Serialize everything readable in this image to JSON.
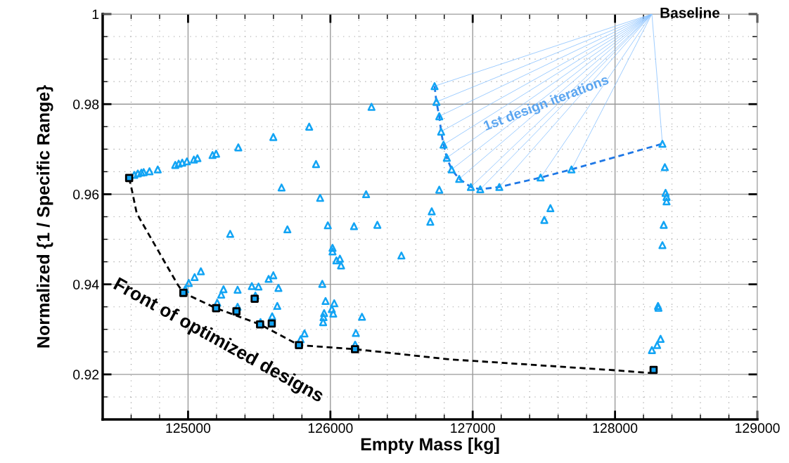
{
  "chart_data": {
    "type": "scatter",
    "xlabel": "Empty Mass [kg]",
    "ylabel": "Normalized {1 / Specific Range}",
    "xlim": [
      124400,
      129000
    ],
    "xticks": [
      125000,
      126000,
      127000,
      128000,
      129000
    ],
    "ylim": [
      0.91,
      1
    ],
    "yticks": [
      0.92,
      0.94,
      0.96,
      0.98,
      1
    ],
    "grid": true,
    "annotations": [
      {
        "text": "Baseline",
        "x": 128259,
        "y": 1.0
      },
      "1st design iterations",
      "Front of optimized designs"
    ],
    "series": [
      {
        "type": "line",
        "color": "#8cc3ff",
        "line_style": "solid",
        "x": [
          128259,
          126732,
          null,
          128259,
          126745,
          null,
          128259,
          126765,
          null,
          128259,
          126778,
          null,
          128259,
          126795,
          null,
          128259,
          126818,
          null,
          128259,
          126852,
          null,
          128259,
          126905,
          null,
          128259,
          126987,
          null,
          128259,
          127053,
          null,
          128259,
          127187,
          null,
          128259,
          127477,
          null,
          128259,
          127694,
          null,
          128259,
          128333
        ],
        "values": [
          1.0,
          0.984,
          null,
          1.0,
          0.9805,
          null,
          1.0,
          0.9773,
          null,
          1.0,
          0.9739,
          null,
          1.0,
          0.971,
          null,
          1.0,
          0.9681,
          null,
          1.0,
          0.9655,
          null,
          1.0,
          0.9634,
          null,
          1.0,
          0.9616,
          null,
          1.0,
          0.9611,
          null,
          1.0,
          0.9616,
          null,
          1.0,
          0.9637,
          null,
          1.0,
          0.9655,
          null,
          1.0,
          0.9712
        ]
      },
      {
        "color": "#12a4f4",
        "marker": "triangle",
        "x": [
          126732,
          126745,
          126765,
          126778,
          126795,
          126818,
          126852,
          126905,
          126987,
          127053,
          127187,
          127477,
          127694,
          128333,
          124622,
          124647,
          124672,
          124688,
          124729,
          124787,
          124910,
          124934,
          124959,
          124992,
          125041,
          125066,
          125172,
          125197,
          125353,
          125599,
          125851,
          126289,
          125899,
          125657,
          125928,
          126251,
          126765,
          126712,
          126702,
          125982,
          126166,
          126330,
          125698,
          125296,
          127546,
          127503,
          128350,
          128355,
          128362,
          128362,
          128342,
          128333,
          128302,
          128305,
          128320,
          128296,
          128259,
          126015,
          126015,
          126499,
          126042,
          126067,
          126075,
          125090,
          125046,
          125005,
          124980,
          125249,
          125233,
          125348,
          125448,
          125495,
          125566,
          125599,
          125635,
          125943,
          125966,
          126027,
          126010,
          126020,
          125956,
          125952,
          125949,
          126222,
          125627,
          125591,
          125205,
          125348,
          125473,
          125509,
          125818,
          125791,
          126179,
          126174
        ],
        "values": [
          0.984,
          0.9805,
          0.9773,
          0.9739,
          0.971,
          0.9681,
          0.9655,
          0.9634,
          0.9616,
          0.9611,
          0.9616,
          0.9637,
          0.9655,
          0.9712,
          0.9643,
          0.9646,
          0.9648,
          0.9649,
          0.9651,
          0.9655,
          0.9665,
          0.9668,
          0.967,
          0.9673,
          0.9677,
          0.968,
          0.9687,
          0.969,
          0.9704,
          0.9727,
          0.975,
          0.9794,
          0.9667,
          0.9615,
          0.9592,
          0.96,
          0.961,
          0.9562,
          0.9539,
          0.9531,
          0.9529,
          0.9532,
          0.9522,
          0.9512,
          0.9569,
          0.9543,
          0.966,
          0.9603,
          0.9594,
          0.9584,
          0.9532,
          0.9487,
          0.9352,
          0.9348,
          0.9279,
          0.9265,
          0.9254,
          0.9481,
          0.9473,
          0.9464,
          0.9453,
          0.9457,
          0.9442,
          0.9429,
          0.9416,
          0.9403,
          0.9389,
          0.9389,
          0.9377,
          0.9388,
          0.9396,
          0.9395,
          0.9412,
          0.942,
          0.9392,
          0.9401,
          0.9363,
          0.9358,
          0.9345,
          0.9335,
          0.9336,
          0.9327,
          0.9316,
          0.9328,
          0.9352,
          0.9329,
          0.9359,
          0.935,
          0.9375,
          0.9316,
          0.9291,
          0.9278,
          0.9292,
          0.9266
        ]
      },
      {
        "type": "line",
        "color": "#1f78e6",
        "line_style": "dashed",
        "x": [
          126732,
          126745,
          126765,
          126778,
          126795,
          126818,
          126852,
          126905,
          126987,
          127053,
          127187,
          127477,
          127694,
          128333
        ],
        "values": [
          0.984,
          0.9805,
          0.9773,
          0.9739,
          0.971,
          0.9681,
          0.9655,
          0.9634,
          0.9616,
          0.9611,
          0.9616,
          0.9637,
          0.9655,
          0.9712
        ]
      },
      {
        "type": "line",
        "color": "#000000",
        "line_style": "dashed",
        "x": [
          124586,
          124606,
          124639,
          124680,
          124926,
          124967,
          125197,
          125506,
          125779,
          126173,
          126847,
          127003,
          128006,
          128251
        ],
        "values": [
          0.9636,
          0.9608,
          0.9558,
          0.9535,
          0.94,
          0.9381,
          0.9347,
          0.9311,
          0.9265,
          0.9256,
          0.9233,
          0.923,
          0.9209,
          0.9203
        ]
      },
      {
        "color": "#12a4f4",
        "marker": "square",
        "x": [
          124586,
          124967,
          125197,
          125340,
          125468,
          125506,
          125588,
          125779,
          126173,
          128271
        ],
        "values": [
          0.9636,
          0.9381,
          0.9347,
          0.934,
          0.9368,
          0.9311,
          0.9313,
          0.9265,
          0.9256,
          0.921
        ]
      }
    ]
  }
}
